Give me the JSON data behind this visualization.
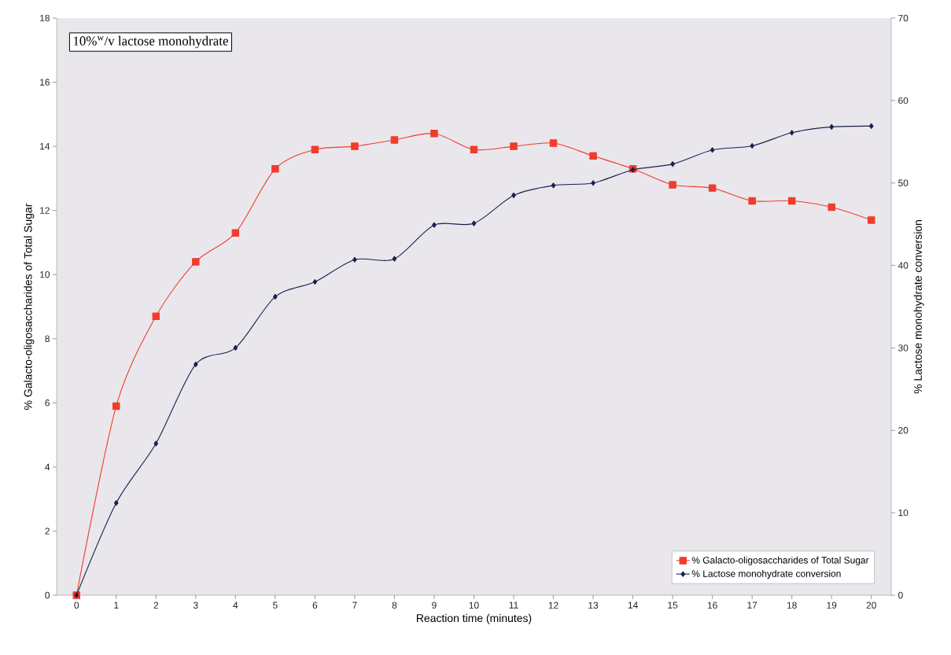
{
  "chart_data": {
    "type": "line",
    "x": [
      0,
      1,
      2,
      3,
      4,
      5,
      6,
      7,
      8,
      9,
      10,
      11,
      12,
      13,
      14,
      15,
      16,
      17,
      18,
      19,
      20
    ],
    "xlabel": "Reaction time (minutes)",
    "ylabel": "% Galacto-oligosaccharides of Total Sugar",
    "y2label": "% Lactose monohydrate conversion",
    "xlim": [
      -0.5,
      20.5
    ],
    "xticks": [
      0,
      1,
      2,
      3,
      4,
      5,
      6,
      7,
      8,
      9,
      10,
      11,
      12,
      13,
      14,
      15,
      16,
      17,
      18,
      19,
      20
    ],
    "ylim": [
      0,
      18
    ],
    "yticks": [
      0,
      2,
      4,
      6,
      8,
      10,
      12,
      14,
      16,
      18
    ],
    "y2lim": [
      0,
      70
    ],
    "y2ticks": [
      0,
      10,
      20,
      30,
      40,
      50,
      60,
      70
    ],
    "annotations": [
      "10%$^{w}$/v lactose monohydrate"
    ],
    "legend": "bottom right",
    "series": [
      {
        "name": "% Galacto-oligosaccharides of Total Sugar",
        "color": "#f03c2c",
        "marker": "square",
        "values": [
          0,
          5.9,
          8.7,
          10.4,
          11.3,
          13.3,
          13.9,
          14.0,
          14.2,
          14.4,
          13.9,
          14.0,
          14.1,
          13.7,
          13.3,
          12.8,
          12.7,
          12.3,
          12.3,
          12.1,
          11.7
        ]
      },
      {
        "name": "% Lactose monohydrate conversion",
        "color": "#1a2050",
        "marker": "diamond",
        "axis": "y2",
        "values": [
          0,
          11.2,
          18.4,
          28.0,
          30.0,
          36.2,
          38.0,
          40.7,
          40.8,
          44.9,
          45.1,
          48.5,
          49.7,
          50.0,
          51.6,
          52.3,
          54.0,
          54.5,
          56.1,
          56.8,
          56.9
        ]
      }
    ]
  }
}
